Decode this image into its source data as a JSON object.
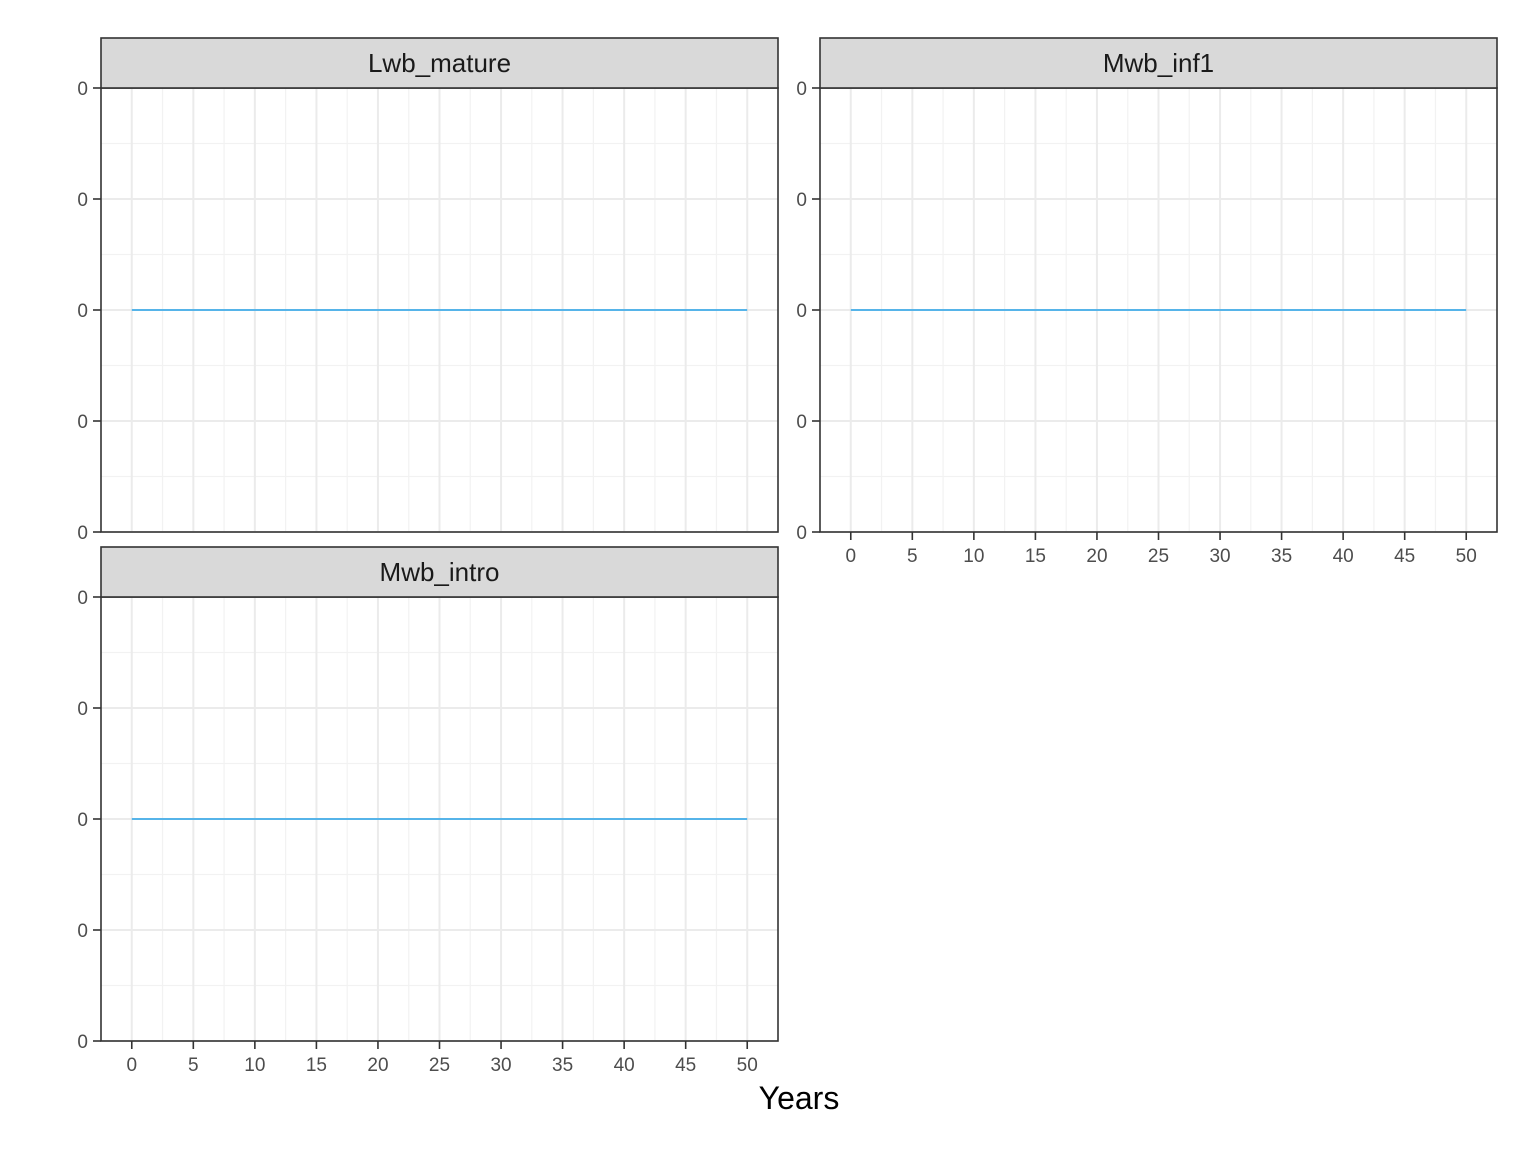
{
  "chart_data": {
    "type": "line",
    "xlabel": "Years",
    "ylabel": "",
    "xlim": [
      -2.5,
      52.5
    ],
    "x_ticks": [
      0,
      5,
      10,
      15,
      20,
      25,
      30,
      35,
      40,
      45,
      50
    ],
    "x_tick_labels": [
      "0",
      "5",
      "10",
      "15",
      "20",
      "25",
      "30",
      "35",
      "40",
      "45",
      "50"
    ],
    "y_tick_labels": [
      "0",
      "0",
      "0",
      "0",
      "0"
    ],
    "grid": true,
    "line_color": "#56B4E9",
    "strip_fill": "#d9d9d9",
    "panels": [
      {
        "title": "Lwb_mature",
        "x": [
          0,
          50
        ],
        "y": [
          0,
          0
        ]
      },
      {
        "title": "Mwb_inf1",
        "x": [
          0,
          50
        ],
        "y": [
          0,
          0
        ]
      },
      {
        "title": "Mwb_intro",
        "x": [
          0,
          50
        ],
        "y": [
          0,
          0
        ]
      }
    ]
  }
}
